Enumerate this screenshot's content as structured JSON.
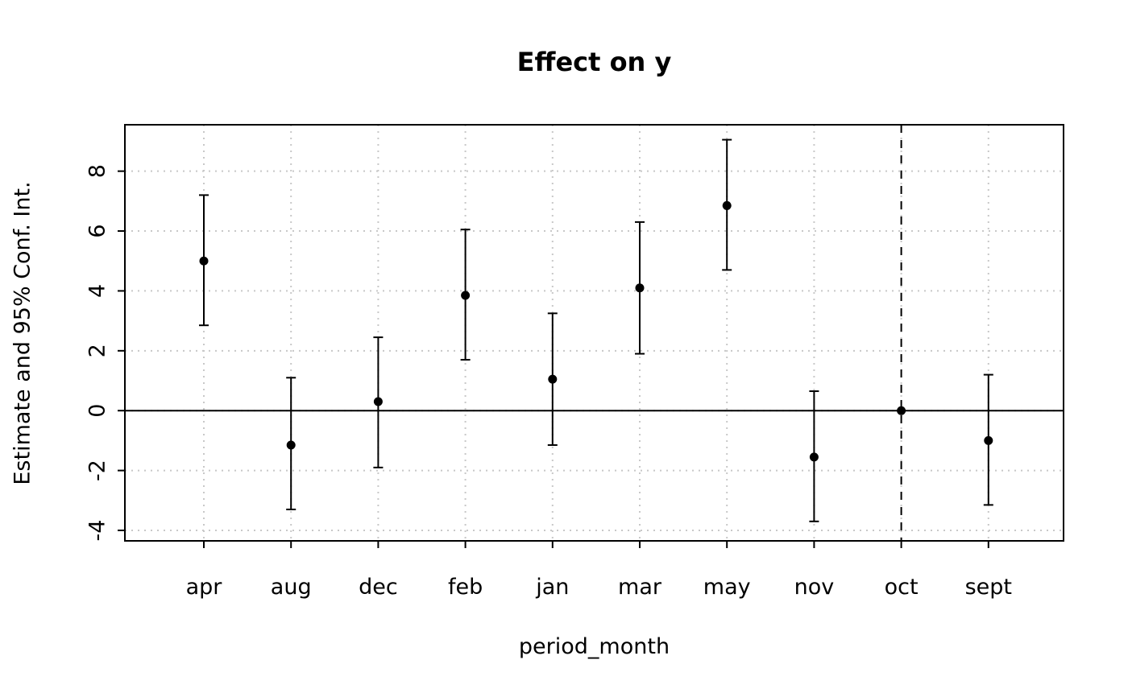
{
  "chart_data": {
    "type": "scatter",
    "title": "Effect on y",
    "xlabel": "period_month",
    "ylabel": "Estimate and 95% Conf. Int.",
    "categories": [
      "apr",
      "aug",
      "dec",
      "feb",
      "jan",
      "mar",
      "may",
      "nov",
      "oct",
      "sept"
    ],
    "series": [
      {
        "name": "estimate",
        "values": [
          5.0,
          -1.15,
          0.3,
          3.85,
          1.05,
          4.1,
          6.85,
          -1.55,
          0.0,
          -1.0
        ]
      },
      {
        "name": "ci_lower",
        "values": [
          2.85,
          -3.3,
          -1.9,
          1.7,
          -1.15,
          1.9,
          4.7,
          -3.7,
          0.0,
          -3.15
        ]
      },
      {
        "name": "ci_upper",
        "values": [
          7.2,
          1.1,
          2.45,
          6.05,
          3.25,
          6.3,
          9.05,
          0.65,
          0.0,
          1.2
        ]
      }
    ],
    "reference_category": "oct",
    "yticks": [
      -4,
      -2,
      0,
      2,
      4,
      6,
      8
    ],
    "ylim": [
      -4.35,
      9.55
    ],
    "grid": true,
    "zero_line": 0,
    "legend": "none",
    "colors": {
      "point": "#000000",
      "axis": "#000000",
      "grid": "#c8c8c8",
      "background": "#ffffff"
    }
  }
}
